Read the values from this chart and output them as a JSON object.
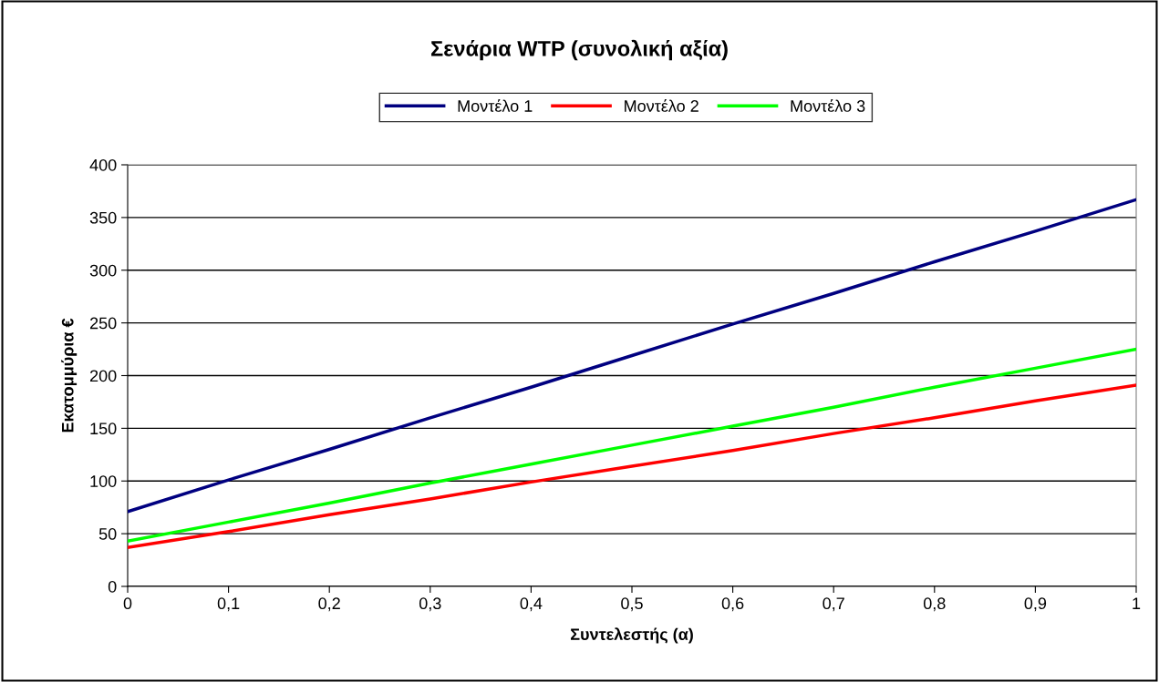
{
  "chart_data": {
    "type": "line",
    "title": "Σενάρια WTP (συνολική αξία)",
    "xlabel": "Συντελεστής (α)",
    "ylabel": "Εκατομμύρια €",
    "x": [
      0,
      0.1,
      0.2,
      0.3,
      0.4,
      0.5,
      0.6,
      0.7,
      0.8,
      0.9,
      1
    ],
    "series": [
      {
        "name": "Μοντέλο 1",
        "color": "#000080",
        "values": [
          71,
          101,
          130,
          160,
          189,
          219,
          249,
          278,
          308,
          337,
          367
        ]
      },
      {
        "name": "Μοντέλο 2",
        "color": "#ff0000",
        "values": [
          37,
          52,
          68,
          83,
          99,
          114,
          129,
          145,
          160,
          176,
          191
        ]
      },
      {
        "name": "Μοντέλο 3",
        "color": "#00ff00",
        "values": [
          43,
          61,
          79,
          98,
          116,
          134,
          152,
          170,
          189,
          207,
          225
        ]
      }
    ],
    "xlim": [
      0,
      1
    ],
    "xticks": [
      0,
      {
        "value": 0.1,
        "label": "0,1"
      },
      {
        "value": 0.2,
        "label": "0,2"
      },
      {
        "value": 0.3,
        "label": "0,3"
      },
      {
        "value": 0.4,
        "label": "0,4"
      },
      {
        "value": 0.5,
        "label": "0,5"
      },
      {
        "value": 0.6,
        "label": "0,6"
      },
      {
        "value": 0.7,
        "label": "0,7"
      },
      {
        "value": 0.8,
        "label": "0,8"
      },
      {
        "value": 0.9,
        "label": "0,9"
      },
      1
    ],
    "ylim": [
      0,
      400
    ],
    "yticks": [
      0,
      50,
      100,
      150,
      200,
      250,
      300,
      350,
      400
    ],
    "grid": "y",
    "legend": "top",
    "marker": "none",
    "line_style": "solid"
  }
}
